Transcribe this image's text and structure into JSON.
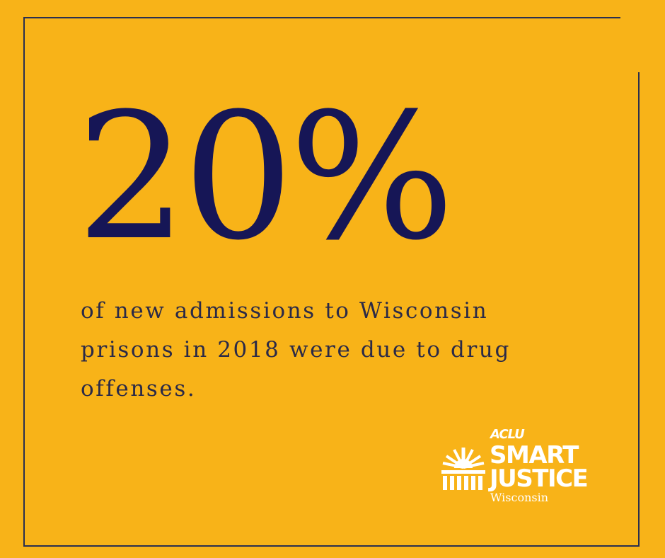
{
  "stat": {
    "value": "20%",
    "description": "of new admissions to Wisconsin prisons in 2018 were due to drug offenses."
  },
  "logo": {
    "org": "ACLU",
    "line1": "SMART",
    "line2": "JUSTICE",
    "state": "Wisconsin"
  },
  "colors": {
    "background": "#F8B318",
    "stat": "#161656",
    "text": "#2B2A47",
    "frame": "#2A2F4F",
    "logo": "#FFFFFF"
  }
}
